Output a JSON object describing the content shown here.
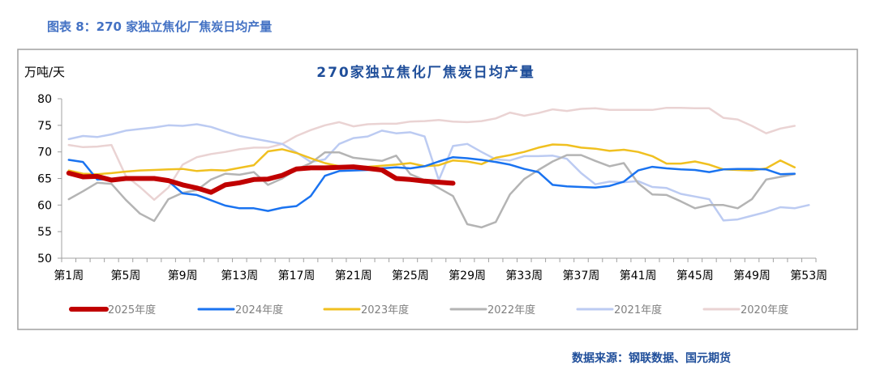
{
  "header": {
    "caption": "图表 8：270 家独立焦化厂焦炭日均产量",
    "color": "#4472c4"
  },
  "footer": {
    "source": "数据来源：钢联数据、国元期货",
    "color": "#1f4e9a"
  },
  "chart_data": {
    "type": "line",
    "title": "270家独立焦化厂焦炭日均产量",
    "title_color": "#1f4e9a",
    "ylabel": "万吨/天",
    "xlabel": "",
    "ylim": [
      50,
      80
    ],
    "yticks": [
      50,
      55,
      60,
      65,
      70,
      75,
      80
    ],
    "x_count": 53,
    "xtick_labels": [
      "第1周",
      "第5周",
      "第9周",
      "第13周",
      "第17周",
      "第21周",
      "第25周",
      "第29周",
      "第33周",
      "第37周",
      "第41周",
      "第45周",
      "第49周",
      "第53周"
    ],
    "grid": false,
    "legend_position": "bottom",
    "series": [
      {
        "name": "2025年度",
        "color": "#c00000",
        "values": [
          66,
          65.3,
          65.4,
          64.7,
          65,
          65,
          65,
          64.6,
          63.8,
          63.2,
          62.4,
          63.8,
          64.2,
          64.8,
          64.9,
          65.6,
          66.8,
          67,
          67,
          67.1,
          67.2,
          66.9,
          66.6,
          65,
          64.8,
          64.5,
          64.3,
          64.1
        ]
      },
      {
        "name": "2024年度",
        "color": "#1a73f0",
        "values": [
          68.5,
          68.1,
          64.8,
          64.9,
          65.1,
          64.9,
          64.9,
          64.5,
          62.2,
          61.9,
          60.9,
          59.9,
          59.4,
          59.4,
          58.9,
          59.5,
          59.8,
          61.7,
          65.5,
          66.4,
          66.5,
          66.6,
          66.9,
          67.1,
          66.9,
          67.3,
          68.2,
          69,
          68.8,
          68.5,
          68.1,
          67.6,
          66.8,
          66.2,
          63.8,
          63.5,
          63.4,
          63.3,
          63.6,
          64.4,
          66.5,
          67.2,
          66.9,
          66.7,
          66.6,
          66.2,
          66.7,
          66.8,
          66.8,
          66.7,
          65.8,
          65.9
        ]
      },
      {
        "name": "2023年度",
        "color": "#f0c020",
        "values": [
          66.5,
          65.9,
          65.8,
          66,
          66.3,
          66.5,
          66.6,
          66.7,
          66.8,
          66.4,
          66.6,
          66.5,
          67,
          67.5,
          70.1,
          70.5,
          69.8,
          68.8,
          67.9,
          67.3,
          67.3,
          67.2,
          67.4,
          67.6,
          67.9,
          67.3,
          67.5,
          68.4,
          68.2,
          67.7,
          68.9,
          69.4,
          70,
          70.8,
          71.4,
          71.3,
          70.8,
          70.6,
          70.2,
          70.4,
          70,
          69.2,
          67.8,
          67.8,
          68.2,
          67.6,
          66.7,
          66.6,
          66.5,
          66.9,
          68.4,
          67.1
        ]
      },
      {
        "name": "2022年度",
        "color": "#b4b4b4",
        "values": [
          61.1,
          62.6,
          64.2,
          64,
          61,
          58.4,
          57,
          61.1,
          62.3,
          62.8,
          64.8,
          65.9,
          65.7,
          66.2,
          63.8,
          65,
          66.7,
          67.9,
          69.9,
          69.9,
          68.9,
          68.6,
          68.3,
          69.3,
          65.8,
          64.7,
          63.2,
          61.7,
          56.4,
          55.8,
          56.8,
          62,
          64.9,
          66.6,
          68.2,
          69.4,
          69.4,
          68.3,
          67.3,
          67.9,
          64.1,
          62,
          61.9,
          60.7,
          59.4,
          60,
          60,
          59.4,
          61.1,
          64.8,
          65.3,
          65.8
        ]
      },
      {
        "name": "2021年度",
        "color": "#bccbf2",
        "values": [
          72.4,
          73,
          72.8,
          73.3,
          74,
          74.3,
          74.6,
          75,
          74.9,
          75.2,
          74.7,
          73.8,
          73,
          72.5,
          72,
          71.5,
          69.9,
          68.1,
          68.6,
          71.5,
          72.6,
          72.9,
          74,
          73.5,
          73.7,
          72.9,
          64.7,
          71.1,
          71.5,
          70,
          68.6,
          68.4,
          69.2,
          69.2,
          69.3,
          68.7,
          66,
          63.9,
          64.4,
          64.3,
          64.5,
          63.4,
          63.2,
          62.1,
          61.6,
          61.1,
          57.1,
          57.3,
          58,
          58.7,
          59.6,
          59.4,
          60
        ]
      },
      {
        "name": "2020年度",
        "color": "#ead3d3",
        "values": [
          71.3,
          70.9,
          71,
          71.3,
          65.5,
          63.4,
          61,
          63.3,
          67.6,
          69,
          69.6,
          70,
          70.5,
          70.8,
          70.8,
          71.5,
          73,
          74.1,
          75,
          75.6,
          74.8,
          75.2,
          75.3,
          75.3,
          75.7,
          75.8,
          76,
          75.7,
          75.6,
          75.8,
          76.3,
          77.4,
          76.8,
          77.3,
          78,
          77.7,
          78.1,
          78.2,
          77.9,
          77.9,
          77.9,
          77.9,
          78.3,
          78.3,
          78.2,
          78.2,
          76.4,
          76.1,
          74.9,
          73.5,
          74.4,
          74.9
        ]
      }
    ]
  }
}
